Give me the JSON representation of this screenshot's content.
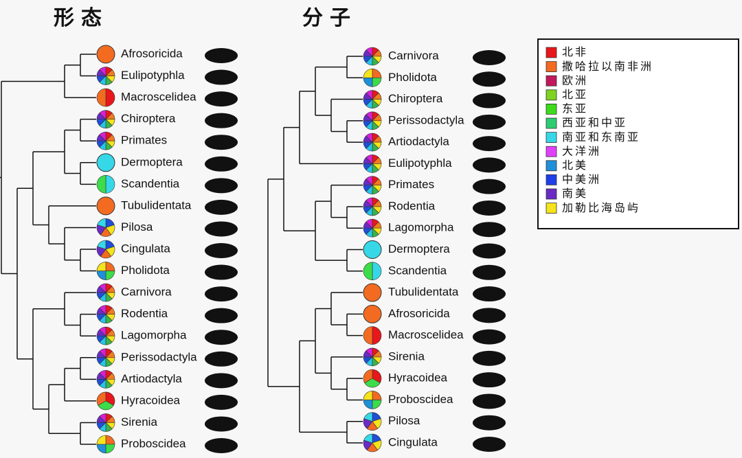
{
  "trees": [
    {
      "title": "形态",
      "taxa": [
        {
          "label": "Afrosoricida",
          "pie": [
            "#f26b21"
          ]
        },
        {
          "label": "Eulipotyphla",
          "pie": [
            "#e8171b",
            "#f47a20",
            "#f5e31c",
            "#39b54a",
            "#27c4e8",
            "#1f4fd8",
            "#6a2bc4",
            "#d81fd8"
          ]
        },
        {
          "label": "Macroscelidea",
          "pie": [
            "#e8171b",
            "#f26b21"
          ]
        },
        {
          "label": "Chiroptera",
          "pie": [
            "#e8171b",
            "#f47a20",
            "#f5e31c",
            "#39b54a",
            "#27c4e8",
            "#1f4fd8",
            "#6a2bc4",
            "#d81fd8"
          ]
        },
        {
          "label": "Primates",
          "pie": [
            "#e8171b",
            "#f47a20",
            "#f5e31c",
            "#39b54a",
            "#27c4e8",
            "#1f4fd8",
            "#6a2bc4",
            "#d81fd8"
          ]
        },
        {
          "label": "Dermoptera",
          "pie": [
            "#36d8e8"
          ]
        },
        {
          "label": "Scandentia",
          "pie": [
            "#36d8e8",
            "#3ddc4a"
          ]
        },
        {
          "label": "Tubulidentata",
          "pie": [
            "#f26b21"
          ]
        },
        {
          "label": "Pilosa",
          "pie": [
            "#1f4fd8",
            "#f5e31c",
            "#f26b21",
            "#6a2bc4",
            "#36d8e8"
          ]
        },
        {
          "label": "Cingulata",
          "pie": [
            "#1f4fd8",
            "#f5e31c",
            "#f26b21",
            "#6a2bc4",
            "#36d8e8"
          ]
        },
        {
          "label": "Pholidota",
          "pie": [
            "#f26b21",
            "#3ddc4a",
            "#1f8fd8",
            "#f5e31c"
          ]
        },
        {
          "label": "Carnivora",
          "pie": [
            "#e8171b",
            "#f47a20",
            "#f5e31c",
            "#39b54a",
            "#27c4e8",
            "#1f4fd8",
            "#6a2bc4",
            "#d81fd8"
          ]
        },
        {
          "label": "Rodentia",
          "pie": [
            "#e8171b",
            "#f47a20",
            "#f5e31c",
            "#39b54a",
            "#27c4e8",
            "#1f4fd8",
            "#6a2bc4",
            "#d81fd8"
          ]
        },
        {
          "label": "Lagomorpha",
          "pie": [
            "#e8171b",
            "#f47a20",
            "#f5e31c",
            "#39b54a",
            "#27c4e8",
            "#1f4fd8",
            "#6a2bc4",
            "#d81fd8"
          ]
        },
        {
          "label": "Perissodactyla",
          "pie": [
            "#e8171b",
            "#f47a20",
            "#f5e31c",
            "#39b54a",
            "#27c4e8",
            "#1f4fd8",
            "#6a2bc4",
            "#d81fd8"
          ]
        },
        {
          "label": "Artiodactyla",
          "pie": [
            "#e8171b",
            "#f47a20",
            "#f5e31c",
            "#39b54a",
            "#27c4e8",
            "#1f4fd8",
            "#6a2bc4",
            "#d81fd8"
          ]
        },
        {
          "label": "Hyracoidea",
          "pie": [
            "#e8171b",
            "#3ddc4a",
            "#f26b21"
          ]
        },
        {
          "label": "Sirenia",
          "pie": [
            "#e8171b",
            "#f47a20",
            "#f5e31c",
            "#39b54a",
            "#27c4e8",
            "#1f4fd8",
            "#6a2bc4",
            "#d81fd8"
          ]
        },
        {
          "label": "Proboscidea",
          "pie": [
            "#f26b21",
            "#3ddc4a",
            "#1f8fd8",
            "#f5e31c"
          ]
        }
      ]
    },
    {
      "title": "分子",
      "taxa": [
        {
          "label": "Carnivora",
          "pie": [
            "#e8171b",
            "#f47a20",
            "#f5e31c",
            "#39b54a",
            "#27c4e8",
            "#1f4fd8",
            "#6a2bc4",
            "#d81fd8"
          ]
        },
        {
          "label": "Pholidota",
          "pie": [
            "#f26b21",
            "#3ddc4a",
            "#1f8fd8",
            "#f5e31c"
          ]
        },
        {
          "label": "Chiroptera",
          "pie": [
            "#e8171b",
            "#f47a20",
            "#f5e31c",
            "#39b54a",
            "#27c4e8",
            "#1f4fd8",
            "#6a2bc4",
            "#d81fd8"
          ]
        },
        {
          "label": "Perissodactyla",
          "pie": [
            "#e8171b",
            "#f47a20",
            "#f5e31c",
            "#39b54a",
            "#27c4e8",
            "#1f4fd8",
            "#6a2bc4",
            "#d81fd8"
          ]
        },
        {
          "label": "Artiodactyla",
          "pie": [
            "#e8171b",
            "#f47a20",
            "#f5e31c",
            "#39b54a",
            "#27c4e8",
            "#1f4fd8",
            "#6a2bc4",
            "#d81fd8"
          ]
        },
        {
          "label": "Eulipotyphla",
          "pie": [
            "#e8171b",
            "#f47a20",
            "#f5e31c",
            "#39b54a",
            "#27c4e8",
            "#1f4fd8",
            "#6a2bc4",
            "#d81fd8"
          ]
        },
        {
          "label": "Primates",
          "pie": [
            "#e8171b",
            "#f47a20",
            "#f5e31c",
            "#39b54a",
            "#27c4e8",
            "#1f4fd8",
            "#6a2bc4",
            "#d81fd8"
          ]
        },
        {
          "label": "Rodentia",
          "pie": [
            "#e8171b",
            "#f47a20",
            "#f5e31c",
            "#39b54a",
            "#27c4e8",
            "#1f4fd8",
            "#6a2bc4",
            "#d81fd8"
          ]
        },
        {
          "label": "Lagomorpha",
          "pie": [
            "#e8171b",
            "#f47a20",
            "#f5e31c",
            "#39b54a",
            "#27c4e8",
            "#1f4fd8",
            "#6a2bc4",
            "#d81fd8"
          ]
        },
        {
          "label": "Dermoptera",
          "pie": [
            "#36d8e8"
          ]
        },
        {
          "label": "Scandentia",
          "pie": [
            "#36d8e8",
            "#3ddc4a"
          ]
        },
        {
          "label": "Tubulidentata",
          "pie": [
            "#f26b21"
          ]
        },
        {
          "label": "Afrosoricida",
          "pie": [
            "#f26b21"
          ]
        },
        {
          "label": "Macroscelidea",
          "pie": [
            "#e8171b",
            "#f26b21"
          ]
        },
        {
          "label": "Sirenia",
          "pie": [
            "#e8171b",
            "#f47a20",
            "#f5e31c",
            "#39b54a",
            "#27c4e8",
            "#1f4fd8",
            "#6a2bc4",
            "#d81fd8"
          ]
        },
        {
          "label": "Hyracoidea",
          "pie": [
            "#e8171b",
            "#3ddc4a",
            "#f26b21"
          ]
        },
        {
          "label": "Proboscidea",
          "pie": [
            "#f26b21",
            "#3ddc4a",
            "#1f8fd8",
            "#f5e31c"
          ]
        },
        {
          "label": "Pilosa",
          "pie": [
            "#1f4fd8",
            "#f5e31c",
            "#f26b21",
            "#6a2bc4",
            "#36d8e8"
          ]
        },
        {
          "label": "Cingulata",
          "pie": [
            "#1f4fd8",
            "#f5e31c",
            "#f26b21",
            "#6a2bc4",
            "#36d8e8"
          ]
        }
      ]
    }
  ],
  "legend": [
    {
      "label": "北非",
      "color": "#e8171b"
    },
    {
      "label": "撒哈拉以南非洲",
      "color": "#f26b21"
    },
    {
      "label": "欧洲",
      "color": "#c2185b"
    },
    {
      "label": "北亚",
      "color": "#7ed321"
    },
    {
      "label": "东亚",
      "color": "#3ddc1a"
    },
    {
      "label": "西亚和中亚",
      "color": "#2ecc71"
    },
    {
      "label": "南亚和东南亚",
      "color": "#36d8e8"
    },
    {
      "label": "大洋洲",
      "color": "#e040fb"
    },
    {
      "label": "北美",
      "color": "#1f8fd8"
    },
    {
      "label": "中美洲",
      "color": "#1f3fe8"
    },
    {
      "label": "南美",
      "color": "#6a2bc4"
    },
    {
      "label": "加勒比海岛屿",
      "color": "#f5e31c"
    }
  ]
}
